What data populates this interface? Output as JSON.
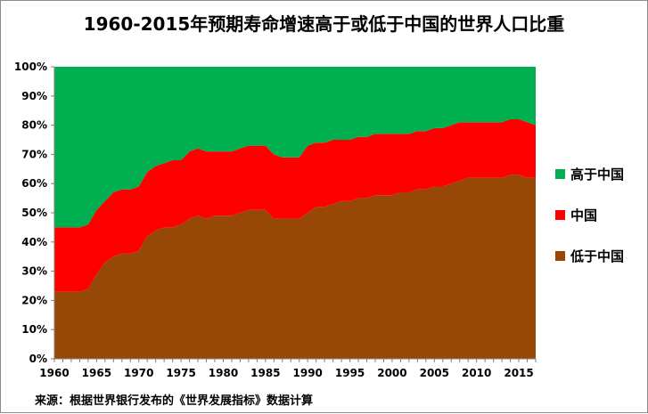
{
  "chart_data": {
    "type": "area",
    "stacked": true,
    "percent": true,
    "title": "1960-2015年预期寿命增速高于或低于中国的世界人口比重",
    "source": "来源：根据世界银行发布的《世界发展指标》数据计算",
    "x": [
      1960,
      1961,
      1962,
      1963,
      1964,
      1965,
      1966,
      1967,
      1968,
      1969,
      1970,
      1971,
      1972,
      1973,
      1974,
      1975,
      1976,
      1977,
      1978,
      1979,
      1980,
      1981,
      1982,
      1983,
      1984,
      1985,
      1986,
      1987,
      1988,
      1989,
      1990,
      1991,
      1992,
      1993,
      1994,
      1995,
      1996,
      1997,
      1998,
      1999,
      2000,
      2001,
      2002,
      2003,
      2004,
      2005,
      2006,
      2007,
      2008,
      2009,
      2010,
      2011,
      2012,
      2013,
      2014,
      2015,
      2016,
      2017
    ],
    "xticks": [
      "1960",
      "1965",
      "1970",
      "1975",
      "1980",
      "1985",
      "1990",
      "1995",
      "2000",
      "2005",
      "2010",
      "2015"
    ],
    "yticks": [
      "0%",
      "10%",
      "20%",
      "30%",
      "40%",
      "50%",
      "60%",
      "70%",
      "80%",
      "90%",
      "100%"
    ],
    "ylim": [
      0,
      100
    ],
    "legend_position": "right",
    "series": [
      {
        "name": "低于中国",
        "color": "#974806",
        "values": [
          23,
          23,
          23,
          23,
          24,
          29,
          33,
          35,
          36,
          36,
          37,
          42,
          44,
          45,
          45,
          46,
          48,
          49,
          48,
          49,
          49,
          49,
          50,
          51,
          51,
          51,
          48,
          48,
          48,
          48,
          50,
          52,
          52,
          53,
          54,
          54,
          55,
          55,
          56,
          56,
          56,
          57,
          57,
          58,
          58,
          59,
          59,
          60,
          61,
          62,
          62,
          62,
          62,
          62,
          63,
          63,
          62,
          62
        ]
      },
      {
        "name": "中国",
        "color": "#ff0000",
        "values": [
          22,
          22,
          22,
          22,
          22,
          22,
          21,
          22,
          22,
          22,
          22,
          22,
          22,
          22,
          23,
          22,
          23,
          23,
          23,
          22,
          22,
          22,
          22,
          22,
          22,
          22,
          22,
          21,
          21,
          21,
          23,
          22,
          22,
          22,
          21,
          21,
          21,
          21,
          21,
          21,
          21,
          20,
          20,
          20,
          20,
          20,
          20,
          20,
          20,
          19,
          19,
          19,
          19,
          19,
          19,
          19,
          19,
          18
        ]
      },
      {
        "name": "高于中国",
        "color": "#00b050",
        "values": [
          55,
          55,
          55,
          55,
          54,
          49,
          46,
          43,
          42,
          42,
          41,
          36,
          34,
          33,
          32,
          32,
          29,
          28,
          29,
          29,
          29,
          29,
          28,
          27,
          27,
          27,
          30,
          31,
          31,
          31,
          27,
          26,
          26,
          25,
          25,
          25,
          24,
          24,
          23,
          23,
          23,
          23,
          23,
          22,
          22,
          21,
          21,
          20,
          19,
          19,
          19,
          19,
          19,
          19,
          18,
          18,
          19,
          20
        ]
      }
    ],
    "legend_order": [
      "高于中国",
      "中国",
      "低于中国"
    ]
  }
}
